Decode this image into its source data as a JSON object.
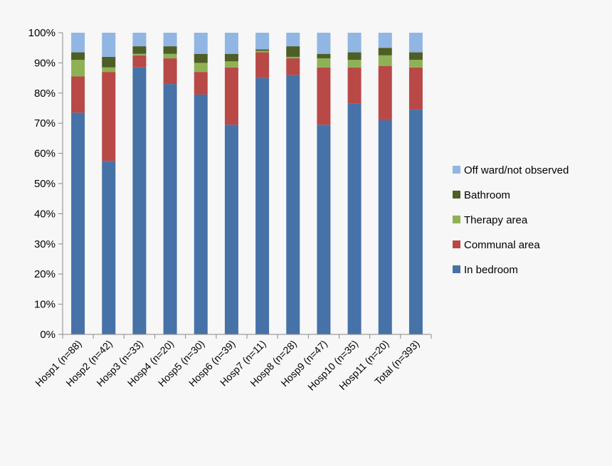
{
  "chart_data": {
    "type": "bar",
    "stacked": true,
    "normalized": true,
    "categories": [
      "Hosp1 (n=88)",
      "Hosp2 (n=42)",
      "Hosp3 (n=33)",
      "Hosp4 (n=20)",
      "Hosp5 (n=30)",
      "Hosp6 (n=39)",
      "Hosp7 (n=11)",
      "Hosp8 (n=28)",
      "Hosp9 (n=47)",
      "Hosp10 (n=35)",
      "Hosp11 (n=20)",
      "Total (n=393)"
    ],
    "series": [
      {
        "name": "In bedroom",
        "color": "#4672a8",
        "values": [
          73.5,
          57.5,
          88.5,
          83.0,
          79.5,
          69.5,
          85.0,
          86.0,
          69.5,
          76.5,
          71.0,
          74.5
        ]
      },
      {
        "name": "Communal area",
        "color": "#b84947",
        "values": [
          12.0,
          29.5,
          4.0,
          8.5,
          7.5,
          19.0,
          8.5,
          5.5,
          19.0,
          12.0,
          18.0,
          14.0
        ]
      },
      {
        "name": "Therapy area",
        "color": "#8fb155",
        "values": [
          5.5,
          1.5,
          0.5,
          1.5,
          3.0,
          2.0,
          0.5,
          0.5,
          3.0,
          2.5,
          3.5,
          2.5
        ]
      },
      {
        "name": "Bathroom",
        "color": "#4d5e26",
        "values": [
          2.5,
          3.5,
          2.5,
          2.5,
          3.0,
          2.5,
          0.5,
          3.5,
          1.5,
          2.5,
          2.5,
          2.5
        ]
      },
      {
        "name": "Off ward/not observed",
        "color": "#91b6e3",
        "values": [
          6.5,
          8.0,
          4.5,
          4.5,
          7.0,
          7.0,
          5.5,
          4.5,
          7.0,
          6.5,
          5.0,
          6.5
        ]
      }
    ],
    "legend_order": [
      "Off ward/not observed",
      "Bathroom",
      "Therapy area",
      "Communal area",
      "In bedroom"
    ],
    "y_ticks": [
      "0%",
      "10%",
      "20%",
      "30%",
      "40%",
      "50%",
      "60%",
      "70%",
      "80%",
      "90%",
      "100%"
    ],
    "ylim": [
      0,
      100
    ],
    "legend_position": "right",
    "grid": false
  }
}
